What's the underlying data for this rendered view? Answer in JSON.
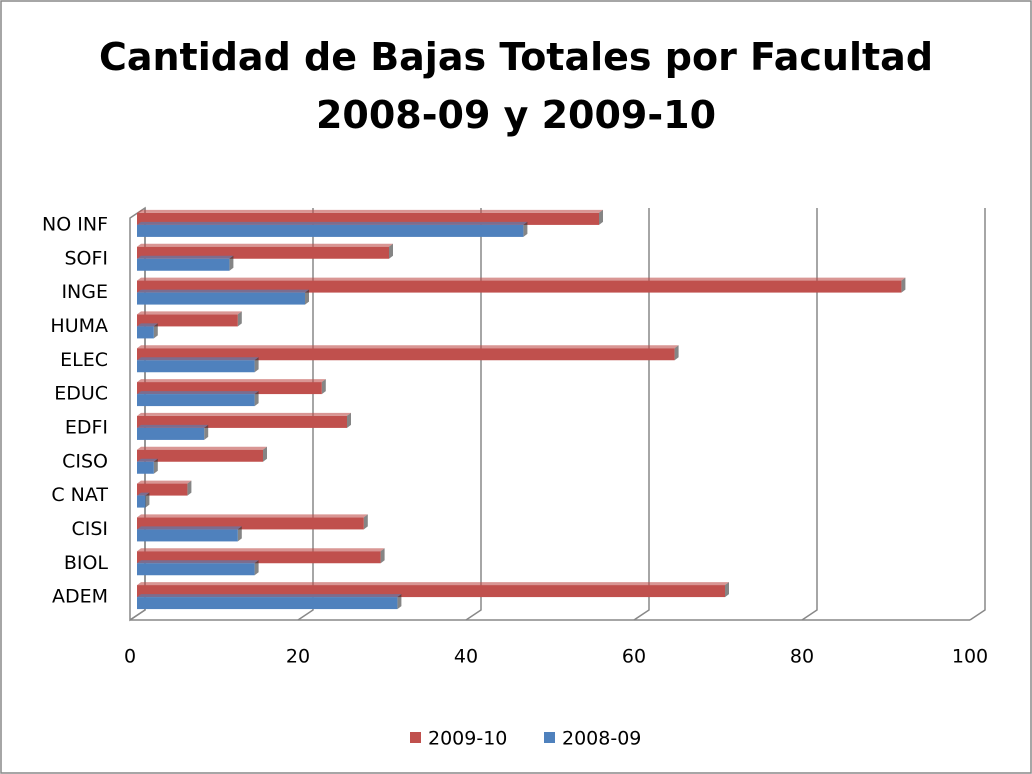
{
  "chart_data": {
    "type": "bar",
    "orientation": "horizontal",
    "title": "Cantidad de Bajas Totales por Facultad\n2008-09 y 2009-10",
    "categories": [
      "ADEM",
      "BIOL",
      "CISI",
      "C NAT",
      "CISO",
      "EDFI",
      "EDUC",
      "ELEC",
      "HUMA",
      "INGE",
      "SOFI",
      "NO INF"
    ],
    "series": [
      {
        "name": "2009-10",
        "color": "#c0504d",
        "values": [
          70,
          29,
          27,
          6,
          15,
          25,
          22,
          64,
          12,
          91,
          30,
          55
        ]
      },
      {
        "name": "2008-09",
        "color": "#4f81bd",
        "values": [
          31,
          14,
          12,
          1,
          2,
          8,
          14,
          14,
          2,
          20,
          11,
          46
        ]
      }
    ],
    "xlim": [
      0,
      100
    ],
    "xticks": [
      0,
      20,
      40,
      60,
      80,
      100
    ],
    "grid": true,
    "legend": "bottom"
  }
}
